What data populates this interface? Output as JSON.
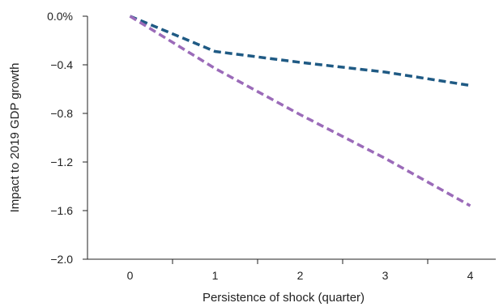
{
  "chart_data": {
    "type": "line",
    "title": "",
    "xlabel": "Persistence of shock (quarter)",
    "ylabel": "Impact to 2019 GDP growth",
    "x": [
      0,
      1,
      2,
      3,
      4
    ],
    "x_tick_labels": [
      "0",
      "1",
      "2",
      "3",
      "4"
    ],
    "y_ticks": [
      0.0,
      -0.4,
      -0.8,
      -1.2,
      -1.6,
      -2.0
    ],
    "y_tick_labels": [
      "0.0%",
      "−0.4",
      "−0.8",
      "−1.2",
      "−1.6",
      "−2.0"
    ],
    "ylim": [
      -2.0,
      0.0
    ],
    "xlim": [
      -0.5,
      4.3
    ],
    "grid": false,
    "series": [
      {
        "values": [
          0.0,
          -0.29,
          -0.38,
          -0.46,
          -0.57
        ],
        "color": "#1f5a84",
        "style": "dashed"
      },
      {
        "values": [
          0.0,
          -0.43,
          -0.81,
          -1.17,
          -1.56
        ],
        "color": "#9b6bb9",
        "style": "dashed"
      }
    ]
  }
}
